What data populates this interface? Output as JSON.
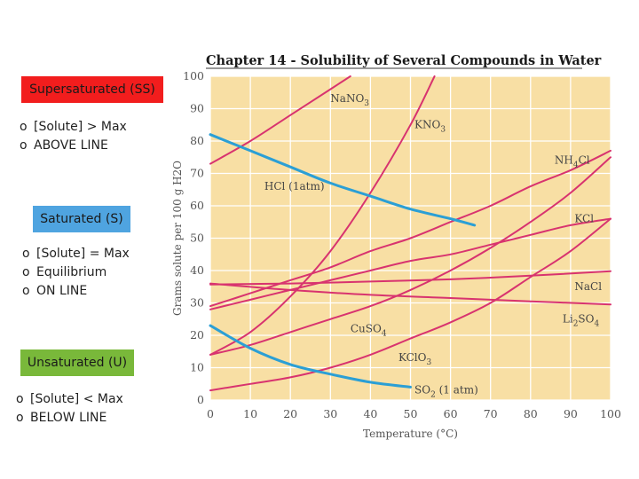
{
  "sidebar": {
    "supersaturated": {
      "label": "Supersaturated (SS)",
      "bullets": [
        "[Solute] > Max",
        "ABOVE LINE"
      ]
    },
    "saturated": {
      "label": "Saturated (S)",
      "bullets": [
        "[Solute] = Max",
        "Equilibrium",
        "ON LINE"
      ]
    },
    "unsaturated": {
      "label": "Unsaturated (U)",
      "bullets": [
        "[Solute] < Max",
        "BELOW LINE"
      ]
    },
    "bullet_marker": "o"
  },
  "colors": {
    "supersaturated": "#f21d1d",
    "saturated": "#4fa4e0",
    "unsaturated": "#79b83a",
    "plot_background": "#f8dfa4",
    "salt_curve": "#d8336f",
    "gas_curve": "#2b9fd5"
  },
  "chart_data": {
    "type": "line",
    "title": "Chapter 14 - Solubility of Several Compounds in Water",
    "xlabel": "Temperature (°C)",
    "ylabel": "Grams solute per 100 g H2O",
    "xlim": [
      0,
      100
    ],
    "ylim": [
      0,
      100
    ],
    "xticks": [
      0,
      10,
      20,
      30,
      40,
      50,
      60,
      70,
      80,
      90,
      100
    ],
    "yticks": [
      0,
      10,
      20,
      30,
      40,
      50,
      60,
      70,
      80,
      90,
      100
    ],
    "grid": true,
    "series": [
      {
        "name": "NaNO3",
        "kind": "salt",
        "points": [
          [
            0,
            73
          ],
          [
            10,
            80
          ],
          [
            20,
            88
          ],
          [
            30,
            96
          ],
          [
            35,
            100
          ]
        ]
      },
      {
        "name": "KNO3",
        "kind": "salt",
        "points": [
          [
            0,
            14
          ],
          [
            10,
            21
          ],
          [
            20,
            32
          ],
          [
            30,
            46
          ],
          [
            40,
            64
          ],
          [
            50,
            85
          ],
          [
            56,
            100
          ]
        ]
      },
      {
        "name": "NH4Cl",
        "kind": "salt",
        "points": [
          [
            0,
            29
          ],
          [
            10,
            33
          ],
          [
            20,
            37
          ],
          [
            30,
            41
          ],
          [
            40,
            46
          ],
          [
            50,
            50
          ],
          [
            60,
            55
          ],
          [
            70,
            60
          ],
          [
            80,
            66
          ],
          [
            90,
            71
          ],
          [
            100,
            77
          ]
        ]
      },
      {
        "name": "HCl (1atm)",
        "kind": "gas",
        "points": [
          [
            0,
            82
          ],
          [
            10,
            77
          ],
          [
            20,
            72
          ],
          [
            30,
            67
          ],
          [
            40,
            63
          ],
          [
            50,
            59
          ],
          [
            60,
            56
          ],
          [
            66,
            54
          ]
        ]
      },
      {
        "name": "KCl",
        "kind": "salt",
        "points": [
          [
            0,
            28
          ],
          [
            10,
            31
          ],
          [
            20,
            34
          ],
          [
            30,
            37
          ],
          [
            40,
            40
          ],
          [
            50,
            43
          ],
          [
            60,
            45
          ],
          [
            70,
            48
          ],
          [
            80,
            51
          ],
          [
            90,
            54
          ],
          [
            100,
            56
          ]
        ]
      },
      {
        "name": "NaCl",
        "kind": "salt",
        "points": [
          [
            0,
            35.7
          ],
          [
            20,
            36
          ],
          [
            40,
            36.6
          ],
          [
            60,
            37.3
          ],
          [
            80,
            38.4
          ],
          [
            100,
            39.8
          ]
        ]
      },
      {
        "name": "Li2SO4",
        "kind": "salt",
        "points": [
          [
            0,
            36
          ],
          [
            20,
            34
          ],
          [
            40,
            32.5
          ],
          [
            60,
            31.5
          ],
          [
            80,
            30.5
          ],
          [
            100,
            29.5
          ]
        ]
      },
      {
        "name": "CuSO4",
        "kind": "salt",
        "points": [
          [
            0,
            14
          ],
          [
            10,
            17
          ],
          [
            20,
            21
          ],
          [
            30,
            25
          ],
          [
            40,
            29
          ],
          [
            50,
            34
          ],
          [
            60,
            40
          ],
          [
            70,
            47
          ],
          [
            80,
            55
          ],
          [
            90,
            64
          ],
          [
            100,
            75
          ]
        ]
      },
      {
        "name": "KClO3",
        "kind": "salt",
        "points": [
          [
            0,
            3
          ],
          [
            10,
            5
          ],
          [
            20,
            7
          ],
          [
            30,
            10
          ],
          [
            40,
            14
          ],
          [
            50,
            19
          ],
          [
            60,
            24
          ],
          [
            70,
            30
          ],
          [
            80,
            38
          ],
          [
            90,
            46
          ],
          [
            100,
            56
          ]
        ]
      },
      {
        "name": "SO2 (1 atm)",
        "kind": "gas",
        "points": [
          [
            0,
            23
          ],
          [
            10,
            16
          ],
          [
            20,
            11
          ],
          [
            30,
            8
          ],
          [
            40,
            5.5
          ],
          [
            50,
            4
          ]
        ]
      }
    ],
    "curve_labels": [
      {
        "text": "NaNO",
        "sub": "3",
        "after": "",
        "x": 30,
        "y": 92
      },
      {
        "text": "KNO",
        "sub": "3",
        "after": "",
        "x": 51,
        "y": 84
      },
      {
        "text": "NH",
        "sub": "4",
        "after": "Cl",
        "x": 86,
        "y": 73
      },
      {
        "text": "HCl (1atm)",
        "sub": "",
        "after": "",
        "x": 13.5,
        "y": 65
      },
      {
        "text": "KCl",
        "sub": "",
        "after": "",
        "x": 91,
        "y": 55
      },
      {
        "text": "NaCl",
        "sub": "",
        "after": "",
        "x": 91,
        "y": 34
      },
      {
        "text": "Li",
        "sub": "2",
        "after": "SO",
        "sub2": "4",
        "x": 88,
        "y": 24
      },
      {
        "text": "CuSO",
        "sub": "4",
        "after": "",
        "x": 35,
        "y": 21
      },
      {
        "text": "KClO",
        "sub": "3",
        "after": "",
        "x": 47,
        "y": 12
      },
      {
        "text": "SO",
        "sub": "2",
        "after": " (1 atm)",
        "x": 51,
        "y": 2
      }
    ]
  }
}
